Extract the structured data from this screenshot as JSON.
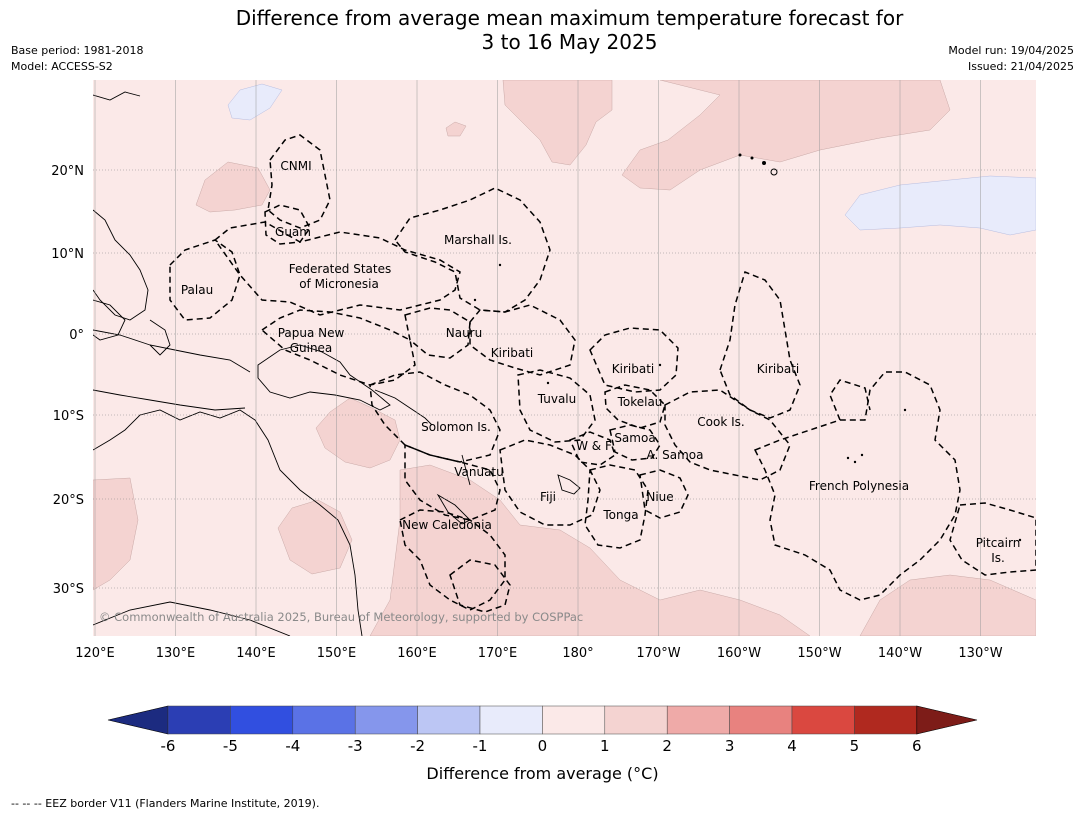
{
  "header": {
    "title_line1": "Difference from average mean maximum temperature forecast for",
    "title_line2": "3 to 16 May 2025",
    "base_period": "Base period: 1981-2018",
    "model": "Model: ACCESS-S2",
    "model_run": "Model run: 19/04/2025",
    "issued": "Issued: 21/04/2025"
  },
  "map": {
    "lon_labels": [
      "120°E",
      "130°E",
      "140°E",
      "150°E",
      "160°E",
      "170°E",
      "180°",
      "170°W",
      "160°W",
      "150°W",
      "140°W",
      "130°W"
    ],
    "lat_labels": [
      "20°N",
      "10°N",
      "0°",
      "10°S",
      "20°S",
      "30°S"
    ],
    "regions": [
      "CNMI",
      "Guam",
      "Marshall Is.",
      "Palau",
      "Federated States",
      "of Micronesia",
      "Papua New",
      "Guinea",
      "Nauru",
      "Kiribati",
      "Kiribati",
      "Kiribati",
      "Tuvalu",
      "Tokelau",
      "Cook Is.",
      "Solomon Is.",
      "W & F",
      "Samoa",
      "A. Samoa",
      "Vanuatu",
      "Fiji",
      "Niue",
      "Tonga",
      "New Caledonia",
      "French Polynesia",
      "Pitcairn",
      "Is."
    ],
    "copyright": "© Commonwealth of Australia 2025, Bureau of Meteorology, supported by COSPPac",
    "colors": {
      "anomaly_0_1": "#fbe9e8",
      "anomaly_1_2": "#f4d3d1",
      "anomaly_m1_0": "#e8ebfb"
    }
  },
  "colorbar": {
    "ticks": [
      "-6",
      "-5",
      "-4",
      "-3",
      "-2",
      "-1",
      "0",
      "1",
      "2",
      "3",
      "4",
      "5",
      "6"
    ],
    "colors": [
      "#1c2b80",
      "#2b3eb4",
      "#314fe0",
      "#5a72e6",
      "#8596ec",
      "#bcc6f4",
      "#e8ebfb",
      "#fbe9e8",
      "#f4d3d1",
      "#efaaa8",
      "#e8827f",
      "#da4840",
      "#b0291f",
      "#7d1c18"
    ],
    "label": "Difference from average (°C)"
  },
  "footnote": "-- -- -- EEZ border V11 (Flanders Marine Institute, 2019)."
}
